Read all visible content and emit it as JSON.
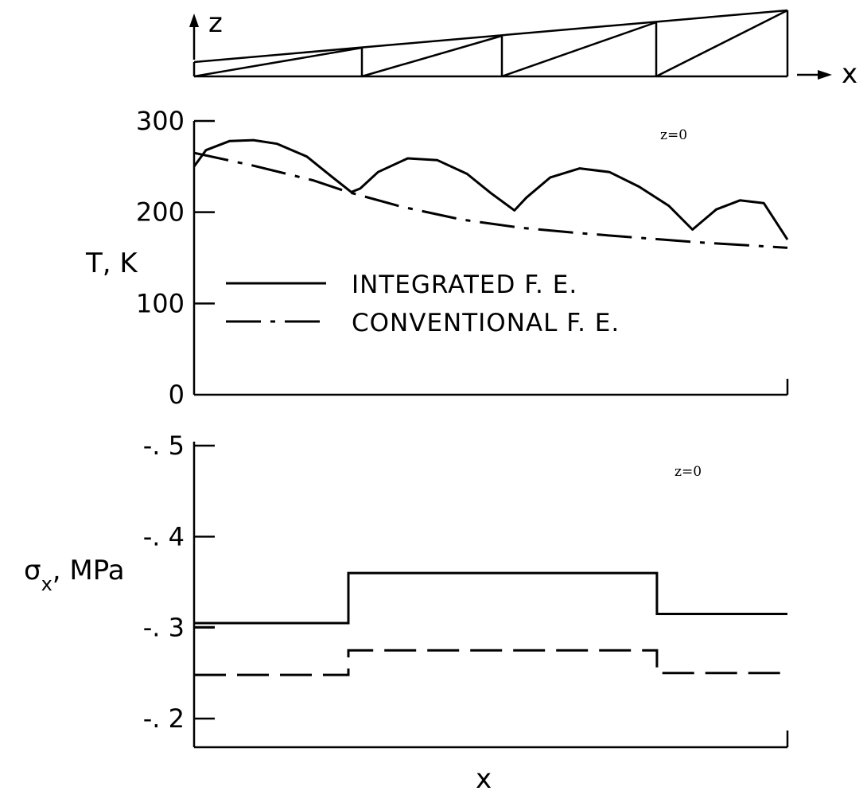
{
  "diagram": {
    "z_label": "z",
    "x_label": "x"
  },
  "chart_data": [
    {
      "type": "line",
      "ylabel": "T, K",
      "xlabel": "",
      "ylim": [
        0,
        300
      ],
      "yticks": [
        "0",
        "100",
        "200",
        "300"
      ],
      "annotation": "z=0",
      "grid": false,
      "legend_placement": "center-left",
      "x_range": [
        0,
        1
      ],
      "series": [
        {
          "name": "INTEGRATED F. E.",
          "style": "solid",
          "x": [
            0,
            0.02,
            0.06,
            0.1,
            0.14,
            0.19,
            0.23,
            0.265,
            0.28,
            0.31,
            0.36,
            0.41,
            0.46,
            0.5,
            0.54,
            0.56,
            0.6,
            0.65,
            0.7,
            0.75,
            0.8,
            0.84,
            0.88,
            0.92,
            0.96,
            1.0
          ],
          "values": [
            250,
            268,
            278,
            279,
            275,
            261,
            240,
            222,
            226,
            244,
            259,
            257,
            242,
            221,
            202,
            216,
            238,
            248,
            244,
            228,
            207,
            181,
            203,
            213,
            210,
            170
          ]
        },
        {
          "name": "CONVENTIONAL F. E.",
          "style": "dash-dot",
          "x": [
            0,
            0.1,
            0.2,
            0.26,
            0.35,
            0.45,
            0.55,
            0.65,
            0.75,
            0.85,
            0.95,
            1.0
          ],
          "values": [
            265,
            251,
            235,
            222,
            206,
            192,
            183,
            177,
            172,
            167,
            163,
            161
          ]
        }
      ]
    },
    {
      "type": "line",
      "ylabel": "σx, MPa",
      "ylabel_main": "σ",
      "ylabel_sub": "x",
      "ylabel_rest": ",  MPa",
      "xlabel": "x",
      "ylim": [
        -0.2,
        -0.5
      ],
      "yticks": [
        "-. 2",
        "-. 3",
        "-. 4",
        "-. 5"
      ],
      "annotation": "z=0",
      "grid": false,
      "x_range": [
        0,
        1
      ],
      "series": [
        {
          "name": "INTEGRATED F. E.",
          "style": "solid",
          "x": [
            0,
            0.26,
            0.26,
            0.78,
            0.78,
            1.0
          ],
          "values": [
            -0.305,
            -0.305,
            -0.36,
            -0.36,
            -0.315,
            -0.315
          ]
        },
        {
          "name": "CONVENTIONAL F. E.",
          "style": "dashed",
          "x": [
            0,
            0.26,
            0.26,
            0.78,
            0.78,
            1.0
          ],
          "values": [
            -0.248,
            -0.248,
            -0.275,
            -0.275,
            -0.25,
            -0.25
          ]
        }
      ]
    }
  ]
}
